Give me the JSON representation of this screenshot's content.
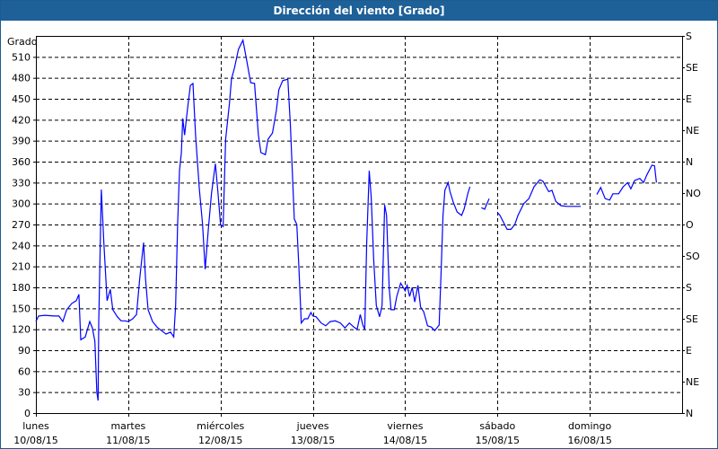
{
  "window": {
    "title": "Dirección del viento [Grado]"
  },
  "chart_data": {
    "type": "line",
    "title": "Dirección del viento [Grado]",
    "ylabel": "Grado",
    "ylim": [
      0,
      540
    ],
    "yticks": [
      0,
      30,
      60,
      90,
      120,
      150,
      180,
      210,
      240,
      270,
      300,
      330,
      360,
      390,
      420,
      450,
      480,
      510
    ],
    "right_axis_labels": [
      {
        "value": 0,
        "label": "N"
      },
      {
        "value": 45,
        "label": "NE"
      },
      {
        "value": 90,
        "label": "E"
      },
      {
        "value": 135,
        "label": "SE"
      },
      {
        "value": 180,
        "label": "S"
      },
      {
        "value": 225,
        "label": "SO"
      },
      {
        "value": 270,
        "label": "O"
      },
      {
        "value": 315,
        "label": "NO"
      },
      {
        "value": 360,
        "label": "N"
      },
      {
        "value": 405,
        "label": "NE"
      },
      {
        "value": 450,
        "label": "E"
      },
      {
        "value": 495,
        "label": "SE"
      },
      {
        "value": 540,
        "label": "S"
      }
    ],
    "xlim": [
      "10/08/15 00:00",
      "17/08/15 00:00"
    ],
    "xticks": [
      {
        "day": "lunes",
        "date": "10/08/15"
      },
      {
        "day": "martes",
        "date": "11/08/15"
      },
      {
        "day": "miércoles",
        "date": "12/08/15"
      },
      {
        "day": "jueves",
        "date": "13/08/15"
      },
      {
        "day": "viernes",
        "date": "14/08/15"
      },
      {
        "day": "sábado",
        "date": "15/08/15"
      },
      {
        "day": "domingo",
        "date": "16/08/15"
      }
    ],
    "grid": true,
    "line_color": "#0000ff",
    "points": [
      [
        "10/08/15 00:00",
        131
      ],
      [
        "10/08/15 00:40",
        139
      ],
      [
        "10/08/15 02:20",
        140
      ],
      [
        "10/08/15 04:40",
        139
      ],
      [
        "10/08/15 06:00",
        139
      ],
      [
        "10/08/15 07:00",
        131
      ],
      [
        "10/08/15 08:00",
        148
      ],
      [
        "10/08/15 09:20",
        157
      ],
      [
        "10/08/15 10:30",
        161
      ],
      [
        "10/08/15 11:10",
        170
      ],
      [
        "10/08/15 11:40",
        105
      ],
      [
        "10/08/15 12:50",
        109
      ],
      [
        "10/08/15 14:00",
        131
      ],
      [
        "10/08/15 14:40",
        122
      ],
      [
        "10/08/15 15:20",
        103
      ],
      [
        "10/08/15 15:50",
        30
      ],
      [
        "10/08/15 16:10",
        18
      ],
      [
        "10/08/15 16:20",
        129
      ],
      [
        "10/08/15 17:00",
        320
      ],
      [
        "10/08/15 17:40",
        244
      ],
      [
        "10/08/15 18:30",
        161
      ],
      [
        "10/08/15 19:20",
        177
      ],
      [
        "10/08/15 20:00",
        148
      ],
      [
        "10/08/15 21:10",
        138
      ],
      [
        "10/08/15 22:10",
        132
      ],
      [
        "10/08/15 23:10",
        132
      ],
      [
        "11/08/15 00:00",
        131
      ],
      [
        "11/08/15 01:10",
        135
      ],
      [
        "11/08/15 02:10",
        141
      ],
      [
        "11/08/15 03:00",
        193
      ],
      [
        "11/08/15 04:00",
        244
      ],
      [
        "11/08/15 04:30",
        193
      ],
      [
        "11/08/15 05:10",
        148
      ],
      [
        "11/08/15 06:20",
        131
      ],
      [
        "11/08/15 07:30",
        123
      ],
      [
        "11/08/15 08:40",
        118
      ],
      [
        "11/08/15 09:50",
        113
      ],
      [
        "11/08/15 11:00",
        116
      ],
      [
        "11/08/15 11:50",
        109
      ],
      [
        "11/08/15 12:20",
        154
      ],
      [
        "11/08/15 12:50",
        270
      ],
      [
        "11/08/15 13:20",
        347
      ],
      [
        "11/08/15 13:50",
        373
      ],
      [
        "11/08/15 14:10",
        422
      ],
      [
        "11/08/15 14:40",
        398
      ],
      [
        "11/08/15 15:10",
        424
      ],
      [
        "11/08/15 15:40",
        447
      ],
      [
        "11/08/15 16:10",
        469
      ],
      [
        "11/08/15 16:50",
        472
      ],
      [
        "11/08/15 17:30",
        398
      ],
      [
        "11/08/15 18:30",
        321
      ],
      [
        "11/08/15 19:20",
        270
      ],
      [
        "11/08/15 20:00",
        206
      ],
      [
        "11/08/15 20:50",
        263
      ],
      [
        "11/08/15 21:40",
        315
      ],
      [
        "11/08/15 22:40",
        357
      ],
      [
        "11/08/15 23:20",
        315
      ],
      [
        "12/08/15 00:00",
        270
      ],
      [
        "12/08/15 00:40",
        267
      ],
      [
        "12/08/15 01:20",
        392
      ],
      [
        "12/08/15 02:20",
        444
      ],
      [
        "12/08/15 02:50",
        478
      ],
      [
        "12/08/15 03:40",
        495
      ],
      [
        "12/08/15 04:40",
        521
      ],
      [
        "12/08/15 05:50",
        534
      ],
      [
        "12/08/15 06:50",
        504
      ],
      [
        "12/08/15 07:50",
        473
      ],
      [
        "12/08/15 08:50",
        472
      ],
      [
        "12/08/15 09:50",
        398
      ],
      [
        "12/08/15 10:30",
        373
      ],
      [
        "12/08/15 11:40",
        370
      ],
      [
        "12/08/15 12:20",
        392
      ],
      [
        "12/08/15 13:30",
        401
      ],
      [
        "12/08/15 14:30",
        433
      ],
      [
        "12/08/15 15:10",
        463
      ],
      [
        "12/08/15 16:10",
        476
      ],
      [
        "12/08/15 17:30",
        478
      ],
      [
        "12/08/15 18:10",
        411
      ],
      [
        "12/08/15 19:10",
        278
      ],
      [
        "12/08/15 19:50",
        270
      ],
      [
        "12/08/15 20:20",
        212
      ],
      [
        "12/08/15 21:00",
        129
      ],
      [
        "12/08/15 21:50",
        135
      ],
      [
        "12/08/15 22:40",
        135
      ],
      [
        "12/08/15 23:30",
        144
      ],
      [
        "13/08/15 00:00",
        139
      ],
      [
        "13/08/15 00:50",
        138
      ],
      [
        "13/08/15 02:10",
        129
      ],
      [
        "13/08/15 03:20",
        125
      ],
      [
        "13/08/15 04:30",
        131
      ],
      [
        "13/08/15 05:50",
        132
      ],
      [
        "13/08/15 07:10",
        129
      ],
      [
        "13/08/15 08:20",
        122
      ],
      [
        "13/08/15 09:30",
        129
      ],
      [
        "13/08/15 10:40",
        123
      ],
      [
        "13/08/15 11:30",
        120
      ],
      [
        "13/08/15 12:20",
        141
      ],
      [
        "13/08/15 13:00",
        126
      ],
      [
        "13/08/15 13:30",
        120
      ],
      [
        "13/08/15 14:00",
        244
      ],
      [
        "13/08/15 14:40",
        347
      ],
      [
        "13/08/15 15:10",
        309
      ],
      [
        "13/08/15 15:50",
        219
      ],
      [
        "13/08/15 16:30",
        154
      ],
      [
        "13/08/15 17:20",
        138
      ],
      [
        "13/08/15 18:00",
        154
      ],
      [
        "13/08/15 18:40",
        298
      ],
      [
        "13/08/15 19:10",
        283
      ],
      [
        "13/08/15 19:50",
        180
      ],
      [
        "13/08/15 20:20",
        148
      ],
      [
        "13/08/15 21:10",
        148
      ],
      [
        "13/08/15 21:50",
        167
      ],
      [
        "13/08/15 22:50",
        186
      ],
      [
        "13/08/15 23:30",
        180
      ],
      [
        "14/08/15 00:00",
        175
      ],
      [
        "14/08/15 00:30",
        183
      ],
      [
        "14/08/15 01:10",
        167
      ],
      [
        "14/08/15 01:50",
        180
      ],
      [
        "14/08/15 02:30",
        159
      ],
      [
        "14/08/15 03:20",
        183
      ],
      [
        "14/08/15 04:00",
        152
      ],
      [
        "14/08/15 04:50",
        145
      ],
      [
        "14/08/15 05:50",
        125
      ],
      [
        "14/08/15 06:50",
        123
      ],
      [
        "14/08/15 07:40",
        118
      ],
      [
        "14/08/15 08:50",
        126
      ],
      [
        "14/08/15 09:20",
        199
      ],
      [
        "14/08/15 09:50",
        283
      ],
      [
        "14/08/15 10:20",
        319
      ],
      [
        "14/08/15 11:10",
        330
      ],
      [
        "14/08/15 11:40",
        317
      ],
      [
        "14/08/15 12:30",
        302
      ],
      [
        "14/08/15 13:30",
        288
      ],
      [
        "14/08/15 14:40",
        283
      ],
      [
        "14/08/15 15:20",
        292
      ],
      [
        "14/08/15 16:20",
        315
      ],
      [
        "14/08/15 16:50",
        324
      ],
      null,
      [
        "14/08/15 19:50",
        294
      ],
      [
        "14/08/15 20:40",
        292
      ],
      [
        "14/08/15 21:50",
        307
      ],
      null,
      [
        "15/08/15 00:00",
        287
      ],
      [
        "15/08/15 00:40",
        283
      ],
      [
        "15/08/15 01:40",
        272
      ],
      [
        "15/08/15 02:30",
        263
      ],
      [
        "15/08/15 03:30",
        263
      ],
      [
        "15/08/15 04:30",
        270
      ],
      [
        "15/08/15 05:20",
        283
      ],
      [
        "15/08/15 06:50",
        300
      ],
      [
        "15/08/15 08:10",
        307
      ],
      [
        "15/08/15 09:30",
        324
      ],
      [
        "15/08/15 11:00",
        334
      ],
      [
        "15/08/15 11:50",
        332
      ],
      [
        "15/08/15 13:20",
        317
      ],
      [
        "15/08/15 14:10",
        319
      ],
      [
        "15/08/15 15:10",
        303
      ],
      [
        "15/08/15 16:30",
        297
      ],
      [
        "15/08/15 18:00",
        296
      ],
      [
        "15/08/15 19:10",
        296
      ],
      [
        "15/08/15 21:40",
        296
      ],
      null,
      [
        "16/08/15 01:50",
        313
      ],
      [
        "16/08/15 02:50",
        323
      ],
      [
        "16/08/15 04:00",
        307
      ],
      [
        "16/08/15 05:10",
        305
      ],
      [
        "16/08/15 06:00",
        314
      ],
      [
        "16/08/15 07:30",
        314
      ],
      [
        "16/08/15 08:40",
        324
      ],
      [
        "16/08/15 09:50",
        330
      ],
      [
        "16/08/15 10:40",
        321
      ],
      [
        "16/08/15 11:40",
        333
      ],
      [
        "16/08/15 13:00",
        336
      ],
      [
        "16/08/15 14:00",
        330
      ],
      [
        "16/08/15 14:50",
        341
      ],
      [
        "16/08/15 16:10",
        355
      ],
      [
        "16/08/15 16:50",
        354
      ],
      [
        "16/08/15 17:20",
        330
      ]
    ]
  }
}
